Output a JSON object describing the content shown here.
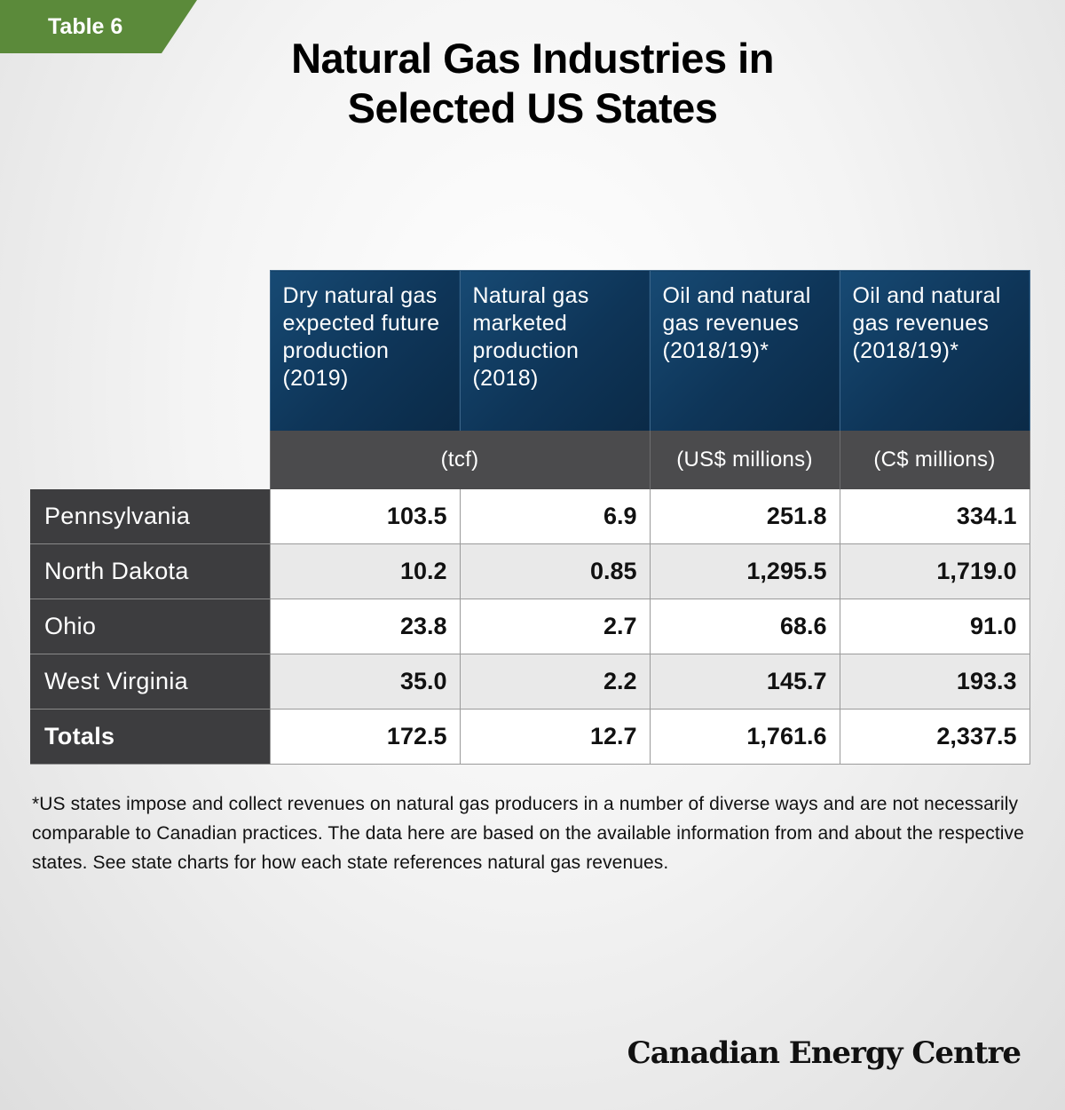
{
  "tab_label": "Table 6",
  "title_line1": "Natural Gas Industries in",
  "title_line2": "Selected US States",
  "chart_data": {
    "type": "table",
    "title": "Natural Gas Industries in Selected US States",
    "columns": [
      "Dry natural gas expected future production (2019)",
      "Natural gas marketed production (2018)",
      "Oil and natural gas revenues (2018/19)*",
      "Oil and natural gas revenues (2018/19)*"
    ],
    "units": [
      "(tcf)",
      "(US$ millions)",
      "(C$ millions)"
    ],
    "rows": [
      {
        "state": "Pennsylvania",
        "values": [
          "103.5",
          "6.9",
          "251.8",
          "334.1"
        ]
      },
      {
        "state": "North Dakota",
        "values": [
          "10.2",
          "0.85",
          "1,295.5",
          "1,719.0"
        ]
      },
      {
        "state": "Ohio",
        "values": [
          "23.8",
          "2.7",
          "68.6",
          "91.0"
        ]
      },
      {
        "state": "West Virginia",
        "values": [
          "35.0",
          "2.2",
          "145.7",
          "193.3"
        ]
      }
    ],
    "totals": {
      "label": "Totals",
      "values": [
        "172.5",
        "12.7",
        "1,761.6",
        "2,337.5"
      ]
    }
  },
  "footnote": "*US states impose and collect revenues on natural gas producers in a number of diverse ways and are not necessarily comparable to Canadian practices. The data here are based on the available information from and about the respective states. See state charts for how each state references natural gas revenues.",
  "logo_text": "Canadian Energy Centre",
  "colors": {
    "tab_green": "#5b8a3a",
    "header_blue": "#0e3558",
    "unit_gray": "#4b4b4d",
    "state_dark": "#3d3d3f"
  }
}
